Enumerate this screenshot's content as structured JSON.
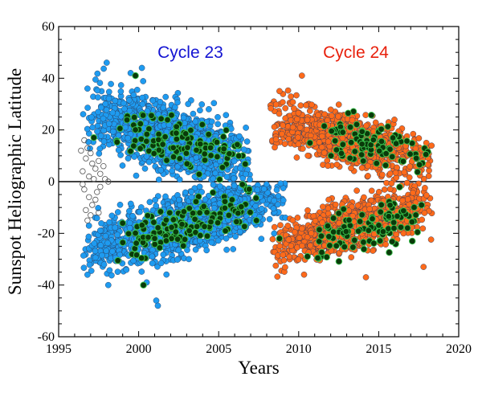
{
  "chart_data": {
    "type": "scatter",
    "xlabel": "Years",
    "ylabel": "Sunspot Heliographic Latitude",
    "xlim": [
      1995,
      2020
    ],
    "ylim": [
      -60,
      60
    ],
    "xticks": [
      1995,
      2000,
      2005,
      2010,
      2015,
      2020
    ],
    "yticks": [
      -60,
      -40,
      -20,
      0,
      20,
      40,
      60
    ],
    "grid": false,
    "zero_line": true,
    "annotations": [
      {
        "text": "Cycle 23",
        "color": "#1414d2"
      },
      {
        "text": "Cycle 24",
        "color": "#e8200c"
      }
    ],
    "series": [
      {
        "color": "#1e9bf0",
        "marker": "filled-circle",
        "clusters": [
          {
            "x_range": [
              1996.5,
              2007.0
            ],
            "lat_start": 27,
            "lat_end": 8,
            "lat_spread": 9,
            "count": 1200
          },
          {
            "x_range": [
              1996.5,
              2009.2
            ],
            "lat_start": -27,
            "lat_end": -6,
            "lat_spread": 8,
            "count": 1200
          }
        ],
        "points": [
          {
            "x": 1998.0,
            "y": 46
          },
          {
            "x": 2000.2,
            "y": 44
          },
          {
            "x": 1999.5,
            "y": 42
          },
          {
            "x": 2001.1,
            "y": -46
          },
          {
            "x": 2001.2,
            "y": -48
          },
          {
            "x": 2000.5,
            "y": -39
          },
          {
            "x": 1998.1,
            "y": -40
          },
          {
            "x": 1996.8,
            "y": -36
          },
          {
            "x": 1996.8,
            "y": 36
          }
        ]
      },
      {
        "color": "#ff6a1a",
        "marker": "filled-circle",
        "clusters": [
          {
            "x_range": [
              2008.0,
              2018.4
            ],
            "lat_start": 24,
            "lat_end": 8,
            "lat_spread": 7,
            "count": 900
          },
          {
            "x_range": [
              2008.3,
              2018.4
            ],
            "lat_start": -26,
            "lat_end": -8,
            "lat_spread": 7,
            "count": 900
          }
        ],
        "points": [
          {
            "x": 2010.2,
            "y": 41
          },
          {
            "x": 2008.8,
            "y": 35
          },
          {
            "x": 2017.8,
            "y": -33
          },
          {
            "x": 2014.2,
            "y": -37
          },
          {
            "x": 2008.8,
            "y": -22
          }
        ]
      },
      {
        "color": "#0a3a0a",
        "marker": "dark-circle",
        "clusters": [
          {
            "x_range": [
              1998.5,
              2007.0
            ],
            "lat_start": 21,
            "lat_end": 9,
            "lat_spread": 6,
            "count": 110
          },
          {
            "x_range": [
              1998.5,
              2007.5
            ],
            "lat_start": -24,
            "lat_end": -7,
            "lat_spread": 6,
            "count": 140
          },
          {
            "x_range": [
              2010.5,
              2018.3
            ],
            "lat_start": 18,
            "lat_end": 10,
            "lat_spread": 6,
            "count": 90
          },
          {
            "x_range": [
              2010.5,
              2018.3
            ],
            "lat_start": -24,
            "lat_end": -10,
            "lat_spread": 6,
            "count": 100
          }
        ],
        "points": [
          {
            "x": 1999.8,
            "y": 41
          },
          {
            "x": 2000.3,
            "y": -40
          },
          {
            "x": 1997.2,
            "y": 17
          },
          {
            "x": 2008.8,
            "y": -22
          },
          {
            "x": 2017.1,
            "y": -23
          }
        ]
      },
      {
        "color": "#555555",
        "marker": "open-circle",
        "clusters": [],
        "points": [
          {
            "x": 1996.4,
            "y": 12
          },
          {
            "x": 1996.6,
            "y": 16
          },
          {
            "x": 1996.7,
            "y": 9
          },
          {
            "x": 1996.5,
            "y": 4
          },
          {
            "x": 1996.9,
            "y": 2
          },
          {
            "x": 1997.1,
            "y": 7
          },
          {
            "x": 1997.3,
            "y": 5
          },
          {
            "x": 1997.5,
            "y": 8
          },
          {
            "x": 1997.6,
            "y": 3
          },
          {
            "x": 1997.8,
            "y": 6
          },
          {
            "x": 1997.9,
            "y": 1
          },
          {
            "x": 1998.1,
            "y": 0
          },
          {
            "x": 1997.2,
            "y": 1
          },
          {
            "x": 1996.8,
            "y": 13
          },
          {
            "x": 1997.0,
            "y": 11
          },
          {
            "x": 1996.6,
            "y": -3
          },
          {
            "x": 1996.9,
            "y": -6
          },
          {
            "x": 1997.1,
            "y": -9
          },
          {
            "x": 1997.4,
            "y": -4
          },
          {
            "x": 1996.7,
            "y": -11
          },
          {
            "x": 1997.0,
            "y": -13
          },
          {
            "x": 1997.3,
            "y": -7
          },
          {
            "x": 1997.6,
            "y": -2
          },
          {
            "x": 1996.5,
            "y": -1
          },
          {
            "x": 1997.5,
            "y": -12
          },
          {
            "x": 1996.8,
            "y": -15
          }
        ]
      }
    ]
  }
}
